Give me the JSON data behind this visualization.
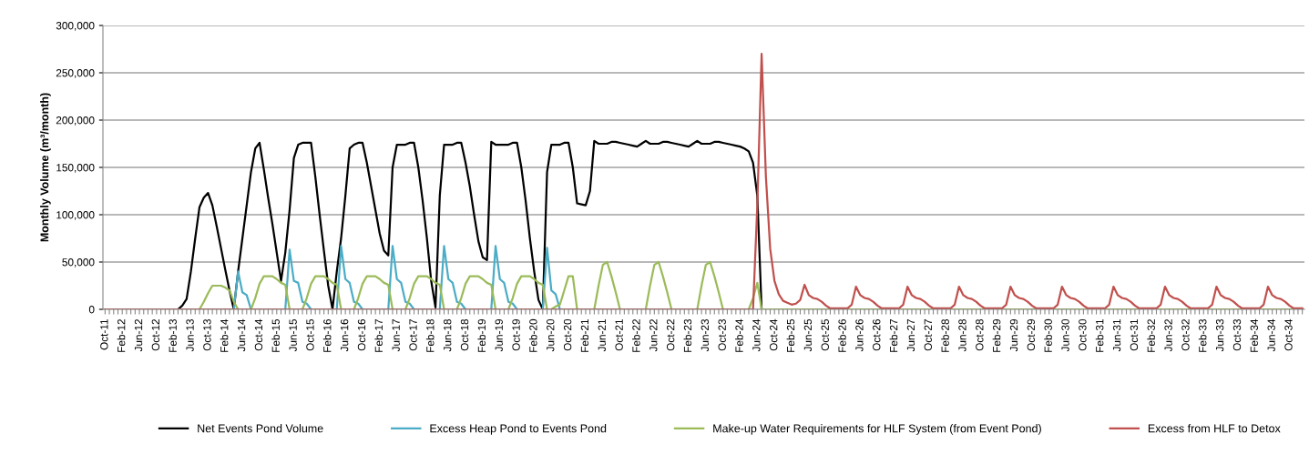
{
  "chart_data": {
    "type": "line",
    "ylabel": "Monthly Volume (m³/month)",
    "categories": [
      "Oct-11",
      null,
      null,
      null,
      "Feb-12",
      null,
      null,
      null,
      "Jun-12",
      null,
      null,
      null,
      "Oct-12",
      null,
      null,
      null,
      "Feb-13",
      null,
      null,
      null,
      "Jun-13",
      null,
      null,
      null,
      "Oct-13",
      null,
      null,
      null,
      "Feb-14",
      null,
      null,
      null,
      "Jun-14",
      null,
      null,
      null,
      "Oct-14",
      null,
      null,
      null,
      "Feb-15",
      null,
      null,
      null,
      "Jun-15",
      null,
      null,
      null,
      "Oct-15",
      null,
      null,
      null,
      "Feb-16",
      null,
      null,
      null,
      "Jun-16",
      null,
      null,
      null,
      "Oct-16",
      null,
      null,
      null,
      "Feb-17",
      null,
      null,
      null,
      "Jun-17",
      null,
      null,
      null,
      "Oct-17",
      null,
      null,
      null,
      "Feb-18",
      null,
      null,
      null,
      "Jun-18",
      null,
      null,
      null,
      "Oct-18",
      null,
      null,
      null,
      "Feb-19",
      null,
      null,
      null,
      "Jun-19",
      null,
      null,
      null,
      "Oct-19",
      null,
      null,
      null,
      "Feb-20",
      null,
      null,
      null,
      "Jun-20",
      null,
      null,
      null,
      "Oct-20",
      null,
      null,
      null,
      "Feb-21",
      null,
      null,
      null,
      "Jun-21",
      null,
      null,
      null,
      "Oct-21",
      null,
      null,
      null,
      "Feb-22",
      null,
      null,
      null,
      "Jun-22",
      null,
      null,
      null,
      "Oct-22",
      null,
      null,
      null,
      "Feb-23",
      null,
      null,
      null,
      "Jun-23",
      null,
      null,
      null,
      "Oct-23",
      null,
      null,
      null,
      "Feb-24",
      null,
      null,
      null,
      "Jun-24",
      null,
      null,
      null,
      "Oct-24",
      null,
      null,
      null,
      "Feb-25",
      null,
      null,
      null,
      "Jun-25",
      null,
      null,
      null,
      "Oct-25",
      null,
      null,
      null,
      "Feb-26",
      null,
      null,
      null,
      "Jun-26",
      null,
      null,
      null,
      "Oct-26",
      null,
      null,
      null,
      "Feb-27",
      null,
      null,
      null,
      "Jun-27",
      null,
      null,
      null,
      "Oct-27",
      null,
      null,
      null,
      "Feb-28",
      null,
      null,
      null,
      "Jun-28",
      null,
      null,
      null,
      "Oct-28",
      null,
      null,
      null,
      "Feb-29",
      null,
      null,
      null,
      "Jun-29",
      null,
      null,
      null,
      "Oct-29",
      null,
      null,
      null,
      "Feb-30",
      null,
      null,
      null,
      "Jun-30",
      null,
      null,
      null,
      "Oct-30",
      null,
      null,
      null,
      "Feb-31",
      null,
      null,
      null,
      "Jun-31",
      null,
      null,
      null,
      "Oct-31",
      null,
      null,
      null,
      "Feb-32",
      null,
      null,
      null,
      "Jun-32",
      null,
      null,
      null,
      "Oct-32",
      null,
      null,
      null,
      "Feb-33",
      null,
      null,
      null,
      "Jun-33",
      null,
      null,
      null,
      "Oct-33",
      null,
      null,
      null,
      "Feb-34",
      null,
      null,
      null,
      "Jun-34",
      null,
      null,
      null,
      "Oct-34",
      null,
      null,
      null
    ],
    "ylim": [
      0,
      300000
    ],
    "yticks": [
      {
        "value": 0,
        "label": "0"
      },
      {
        "value": 50000,
        "label": "50,000"
      },
      {
        "value": 100000,
        "label": "100,000"
      },
      {
        "value": 150000,
        "label": "150,000"
      },
      {
        "value": 200000,
        "label": "200,000"
      },
      {
        "value": 250000,
        "label": "250,000"
      },
      {
        "value": 300000,
        "label": "300,000"
      }
    ],
    "grid": "y",
    "legend": "bottom",
    "marker": "none",
    "line_style": "solid",
    "series": [
      {
        "name": "Net Events Pond Volume",
        "color": "#000000",
        "values": [
          0,
          0,
          0,
          0,
          0,
          0,
          0,
          0,
          0,
          0,
          0,
          0,
          0,
          0,
          0,
          0,
          0,
          0,
          4000,
          11000,
          40000,
          75000,
          108000,
          118000,
          123000,
          110000,
          88000,
          65000,
          42000,
          20000,
          0,
          40000,
          75000,
          110000,
          145000,
          170000,
          176000,
          148000,
          118000,
          90000,
          60000,
          30000,
          60000,
          105000,
          160000,
          174000,
          176000,
          176000,
          176000,
          140000,
          100000,
          62000,
          25000,
          0,
          40000,
          75000,
          120000,
          170000,
          174000,
          176000,
          176000,
          155000,
          130000,
          105000,
          80000,
          62000,
          57000,
          150000,
          174000,
          174000,
          174000,
          176000,
          176000,
          150000,
          115000,
          75000,
          30000,
          2000,
          120000,
          174000,
          174000,
          174000,
          176000,
          176000,
          155000,
          130000,
          100000,
          72000,
          55000,
          52000,
          177000,
          174000,
          174000,
          174000,
          174000,
          176000,
          176000,
          150000,
          115000,
          75000,
          40000,
          10000,
          0,
          145000,
          174000,
          174000,
          174000,
          176000,
          176000,
          150000,
          112000,
          111000,
          110000,
          125000,
          178000,
          175000,
          175000,
          175000,
          177000,
          177000,
          176000,
          175000,
          174000,
          173000,
          172000,
          175000,
          178000,
          175000,
          175000,
          175000,
          177000,
          177000,
          176000,
          175000,
          174000,
          173000,
          172000,
          175000,
          178000,
          175000,
          175000,
          175000,
          177000,
          177000,
          176000,
          175000,
          174000,
          173000,
          172000,
          170000,
          167000,
          155000,
          120000,
          0,
          0,
          0,
          0,
          0,
          0,
          0,
          0,
          0,
          0,
          0,
          0,
          0,
          0,
          0,
          0,
          0,
          0,
          0,
          0,
          0,
          0,
          0,
          0,
          0,
          0,
          0,
          0,
          0,
          0,
          0,
          0,
          0,
          0,
          0,
          0,
          0,
          0,
          0,
          0,
          0,
          0,
          0,
          0,
          0,
          0,
          0,
          0,
          0,
          0,
          0,
          0,
          0,
          0,
          0,
          0,
          0,
          0,
          0,
          0,
          0,
          0,
          0,
          0,
          0,
          0,
          0,
          0,
          0,
          0,
          0,
          0,
          0,
          0,
          0,
          0,
          0,
          0,
          0,
          0,
          0,
          0,
          0,
          0,
          0,
          0,
          0,
          0,
          0,
          0,
          0,
          0,
          0,
          0,
          0,
          0,
          0,
          0,
          0,
          0,
          0,
          0,
          0,
          0,
          0,
          0,
          0,
          0,
          0,
          0,
          0,
          0,
          0,
          0,
          0,
          0,
          0,
          0,
          0,
          0,
          0,
          0,
          0,
          0,
          0,
          0,
          0
        ]
      },
      {
        "name": "Excess Heap Pond to Events Pond",
        "color": "#4bacc6",
        "values": [
          null,
          null,
          null,
          null,
          null,
          null,
          null,
          null,
          null,
          null,
          null,
          null,
          null,
          null,
          null,
          null,
          null,
          null,
          null,
          null,
          null,
          null,
          null,
          null,
          null,
          null,
          null,
          null,
          null,
          null,
          0,
          40000,
          18000,
          15000,
          0,
          null,
          null,
          null,
          null,
          null,
          null,
          null,
          0,
          63000,
          30000,
          28000,
          8000,
          6000,
          0,
          null,
          null,
          null,
          null,
          null,
          0,
          67000,
          32000,
          28000,
          8000,
          6000,
          0,
          null,
          null,
          null,
          null,
          null,
          0,
          67000,
          32000,
          28000,
          8000,
          6000,
          0,
          null,
          null,
          null,
          null,
          null,
          0,
          67000,
          32000,
          28000,
          8000,
          6000,
          0,
          null,
          null,
          null,
          null,
          null,
          0,
          67000,
          32000,
          28000,
          8000,
          6000,
          0,
          null,
          null,
          null,
          null,
          null,
          0,
          65000,
          20000,
          16000,
          0,
          null,
          null,
          null,
          null,
          null,
          null,
          null,
          null,
          null,
          null,
          null,
          null,
          null,
          null,
          null,
          null,
          null,
          null,
          null,
          null,
          null,
          null,
          null,
          null,
          null,
          null,
          null,
          null,
          null,
          null,
          null,
          null,
          null,
          null,
          null,
          null,
          null,
          null,
          null,
          null,
          null,
          null,
          null,
          null,
          null,
          null,
          null,
          null,
          null,
          null,
          null,
          null,
          null,
          null,
          null,
          null,
          null,
          null,
          null,
          null,
          null,
          null,
          null,
          null,
          null,
          null,
          null,
          null,
          null,
          null,
          null,
          null,
          null,
          null,
          null,
          null,
          null,
          null,
          null,
          null,
          null,
          null,
          null,
          null,
          null,
          null,
          null,
          null,
          null,
          null,
          null,
          null,
          null,
          null,
          null,
          null,
          null,
          null,
          null,
          null,
          null,
          null,
          null,
          null,
          null,
          null,
          null,
          null,
          null,
          null,
          null,
          null,
          null,
          null,
          null,
          null,
          null,
          null,
          null,
          null,
          null,
          null,
          null,
          null,
          null,
          null,
          null,
          null,
          null,
          null,
          null,
          null,
          null,
          null,
          null,
          null,
          null,
          null,
          null,
          null,
          null,
          null,
          null,
          null,
          null,
          null,
          null,
          null,
          null,
          null,
          null,
          null,
          null,
          null,
          null,
          null,
          null,
          null,
          null,
          null,
          null,
          null,
          null,
          null,
          null,
          null,
          null,
          null,
          null,
          null,
          null,
          null,
          null
        ]
      },
      {
        "name": "Make-up Water Requirements for HLF System (from Event Pond)",
        "color": "#9bbb59",
        "values": [
          null,
          null,
          null,
          null,
          null,
          null,
          null,
          null,
          null,
          null,
          null,
          null,
          null,
          null,
          null,
          null,
          null,
          null,
          null,
          null,
          0,
          0,
          0,
          8000,
          17000,
          25000,
          25000,
          25000,
          23000,
          20000,
          8000,
          0,
          0,
          0,
          0,
          12000,
          27000,
          35000,
          35000,
          35000,
          32000,
          28000,
          26000,
          0,
          0,
          0,
          0,
          12000,
          27000,
          35000,
          35000,
          35000,
          32000,
          28000,
          26000,
          0,
          0,
          0,
          0,
          12000,
          27000,
          35000,
          35000,
          35000,
          32000,
          28000,
          26000,
          0,
          0,
          0,
          0,
          12000,
          27000,
          35000,
          35000,
          35000,
          32000,
          28000,
          26000,
          0,
          0,
          0,
          0,
          12000,
          27000,
          35000,
          35000,
          35000,
          32000,
          28000,
          26000,
          0,
          0,
          0,
          0,
          12000,
          27000,
          35000,
          35000,
          35000,
          32000,
          28000,
          26000,
          0,
          0,
          3000,
          5000,
          20000,
          35000,
          35000,
          0,
          0,
          0,
          0,
          0,
          25000,
          47000,
          50000,
          35000,
          18000,
          0,
          0,
          0,
          0,
          0,
          0,
          0,
          25000,
          47000,
          50000,
          35000,
          18000,
          0,
          0,
          0,
          0,
          0,
          0,
          0,
          25000,
          47000,
          50000,
          35000,
          18000,
          0,
          0,
          0,
          0,
          0,
          0,
          0,
          12000,
          28000,
          0,
          0,
          0,
          0,
          0,
          0,
          0,
          0,
          0,
          0,
          0,
          0,
          0,
          0,
          0,
          0,
          0,
          0,
          0,
          0,
          0,
          0,
          0,
          0,
          0,
          0,
          0,
          0,
          0,
          0,
          0,
          0,
          0,
          0,
          0,
          0,
          0,
          0,
          0,
          0,
          0,
          0,
          0,
          0,
          0,
          0,
          0,
          0,
          0,
          0,
          0,
          0,
          0,
          0,
          0,
          0,
          0,
          0,
          0,
          0,
          0,
          0,
          0,
          0,
          0,
          0,
          0,
          0,
          0,
          0,
          0,
          0,
          0,
          0,
          0,
          0,
          0,
          0,
          0,
          0,
          0,
          0,
          0,
          0,
          0,
          0,
          0,
          0,
          0,
          0,
          0,
          0,
          0,
          0,
          0,
          0,
          0,
          0,
          0,
          0,
          0,
          0,
          0,
          0,
          0,
          0,
          0,
          0,
          0,
          0,
          0,
          0,
          0,
          0,
          0,
          0,
          0,
          0,
          0,
          0,
          0,
          0,
          0,
          0,
          0,
          0,
          0
        ]
      },
      {
        "name": "Excess from HLF to Detox",
        "color": "#c0504d",
        "values": [
          0,
          0,
          0,
          0,
          0,
          0,
          0,
          0,
          0,
          0,
          0,
          0,
          0,
          0,
          0,
          0,
          0,
          0,
          0,
          0,
          0,
          0,
          0,
          0,
          0,
          0,
          0,
          0,
          0,
          0,
          0,
          0,
          0,
          0,
          0,
          0,
          0,
          0,
          0,
          0,
          0,
          0,
          0,
          0,
          0,
          0,
          0,
          0,
          0,
          0,
          0,
          0,
          0,
          0,
          0,
          0,
          0,
          0,
          0,
          0,
          0,
          0,
          0,
          0,
          0,
          0,
          0,
          0,
          0,
          0,
          0,
          0,
          0,
          0,
          0,
          0,
          0,
          0,
          0,
          0,
          0,
          0,
          0,
          0,
          0,
          0,
          0,
          0,
          0,
          0,
          0,
          0,
          0,
          0,
          0,
          0,
          0,
          0,
          0,
          0,
          0,
          0,
          0,
          0,
          0,
          0,
          0,
          0,
          0,
          0,
          0,
          0,
          0,
          0,
          0,
          0,
          0,
          0,
          0,
          0,
          0,
          0,
          0,
          0,
          0,
          0,
          0,
          0,
          0,
          0,
          0,
          0,
          0,
          0,
          0,
          0,
          0,
          0,
          0,
          0,
          0,
          0,
          0,
          0,
          0,
          0,
          0,
          0,
          0,
          0,
          0,
          0,
          110000,
          270000,
          140000,
          64000,
          30000,
          16000,
          9000,
          7000,
          5000,
          6000,
          10000,
          26000,
          15000,
          12000,
          11000,
          8000,
          4000,
          1000,
          1000,
          1000,
          1000,
          1000,
          5000,
          24000,
          15000,
          12000,
          11000,
          8000,
          4000,
          1000,
          1000,
          1000,
          1000,
          1000,
          5000,
          24000,
          15000,
          12000,
          11000,
          8000,
          4000,
          1000,
          1000,
          1000,
          1000,
          1000,
          5000,
          24000,
          15000,
          12000,
          11000,
          8000,
          4000,
          1000,
          1000,
          1000,
          1000,
          1000,
          5000,
          24000,
          15000,
          12000,
          11000,
          8000,
          4000,
          1000,
          1000,
          1000,
          1000,
          1000,
          5000,
          24000,
          15000,
          12000,
          11000,
          8000,
          4000,
          1000,
          1000,
          1000,
          1000,
          1000,
          5000,
          24000,
          15000,
          12000,
          11000,
          8000,
          4000,
          1000,
          1000,
          1000,
          1000,
          1000,
          5000,
          24000,
          15000,
          12000,
          11000,
          8000,
          4000,
          1000,
          1000,
          1000,
          1000,
          1000,
          5000,
          24000,
          15000,
          12000,
          11000,
          8000,
          4000,
          1000,
          1000,
          1000,
          1000,
          1000,
          5000,
          24000,
          15000,
          12000,
          11000,
          8000,
          4000,
          1000,
          1000,
          1000
        ]
      }
    ]
  }
}
